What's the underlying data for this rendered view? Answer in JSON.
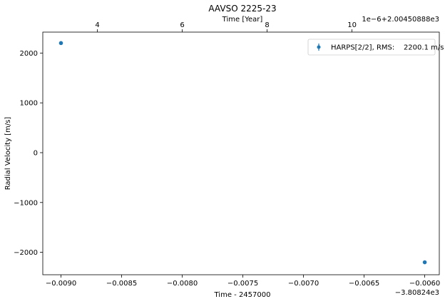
{
  "chart_data": {
    "type": "scatter",
    "title": "AAVSO 2225-23",
    "xlabel": "Time - 2457000",
    "ylabel": "Radial Velocity [m/s]",
    "x_offset_label": "−3.80824e3",
    "xlim": [
      -0.00915,
      -0.00588
    ],
    "ylim": [
      -2450,
      2420
    ],
    "x_ticks": [
      -0.009,
      -0.0085,
      -0.008,
      -0.0075,
      -0.007,
      -0.0065,
      -0.006
    ],
    "x_tick_labels": [
      "−0.0090",
      "−0.0085",
      "−0.0080",
      "−0.0075",
      "−0.0070",
      "−0.0065",
      "−0.0060"
    ],
    "y_ticks": [
      -2000,
      -1000,
      0,
      1000,
      2000
    ],
    "y_tick_labels": [
      "−2000",
      "−1000",
      "0",
      "1000",
      "2000"
    ],
    "top_axis": {
      "label": "Time [Year]",
      "offset_label": "1e−6+2.00450888e3",
      "ticks": [
        4,
        6,
        8,
        10
      ],
      "tick_labels": [
        "4",
        "6",
        "8",
        "10"
      ],
      "tick_positions_in_x": [
        -0.0087,
        -0.008,
        -0.0073,
        -0.0066
      ]
    },
    "series": [
      {
        "name": "HARPS[2/2], RMS:    2200.1 m/s",
        "color": "#1f77b4",
        "x": [
          -0.009,
          -0.006
        ],
        "y": [
          2200,
          -2200
        ],
        "yerr": [
          1.5,
          1.5
        ]
      }
    ],
    "legend_position": "top-right",
    "grid": false
  }
}
